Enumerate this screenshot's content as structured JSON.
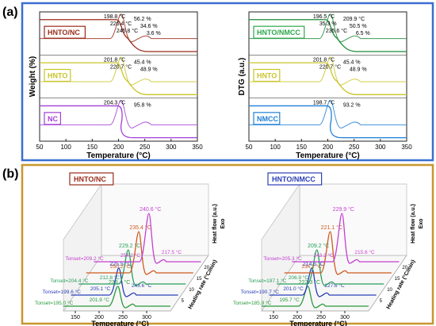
{
  "panel_a": {
    "label": "(a)",
    "frame_color": "#3a6fd0",
    "charts": [
      {
        "id": "a_left",
        "ylabel": "Weight (%)",
        "xlabel": "Temperature (°C)",
        "x_ticks": [
          "50",
          "100",
          "150",
          "200",
          "250",
          "300",
          "350"
        ],
        "xlim": [
          50,
          350
        ],
        "rows": [
          {
            "name": "HNTO/NC",
            "color": "#9a2b1a",
            "box_color": "#9a2b1a",
            "labels": [
              "198.8 °C",
              "56.2 %",
              "226.4 °C",
              "34.6 %",
              "245.8 °C",
              "3.6 %"
            ]
          },
          {
            "name": "HNTO",
            "color": "#c9c42a",
            "box_color": "#c9c42a",
            "labels": [
              "201.8 °C",
              "45.4 %",
              "220.7 °C",
              "48.9 %"
            ]
          },
          {
            "name": "NC",
            "color": "#a33fd6",
            "box_color": "#a33fd6",
            "labels": [
              "204.3 °C",
              "95.8 %"
            ]
          }
        ]
      },
      {
        "id": "a_right",
        "ylabel": "DTG (a.u.)",
        "xlabel": "Temperature (°C)",
        "x_ticks": [
          "50",
          "100",
          "150",
          "200",
          "250",
          "300",
          "350"
        ],
        "xlim": [
          50,
          350
        ],
        "rows": [
          {
            "name": "HNTO/NMCC",
            "color": "#1e8a3a",
            "box_color": "#2aa84a",
            "labels": [
              "196.5 °C",
              "209.9 °C",
              "35.3 %",
              "50.5 %",
              "235.6 °C",
              "6.5 %"
            ]
          },
          {
            "name": "HNTO",
            "color": "#c9c42a",
            "box_color": "#c9c42a",
            "labels": [
              "201.8 °C",
              "45.4 %",
              "220.7 °C",
              "48.9 %"
            ]
          },
          {
            "name": "NMCC",
            "color": "#1f7fd6",
            "box_color": "#1f7fd6",
            "labels": [
              "198.7 °C",
              "93.2 %"
            ]
          }
        ]
      }
    ]
  },
  "panel_b": {
    "label": "(b)",
    "frame_color": "#c8962c",
    "charts": [
      {
        "id": "b_left",
        "title": "HNTO/NC",
        "title_color": "#9a2b1a",
        "zlabel": "Heat flow (a.u.)",
        "exo": "Exo",
        "depth_label": "Heating rate (°C/min)",
        "xlabel": "Temperature (°C)",
        "x_ticks": [
          "150",
          "200",
          "250",
          "300"
        ],
        "depth_ticks": [
          "5",
          "10",
          "15",
          "20"
        ],
        "series": [
          {
            "rate": "5",
            "color": "#2a9a3a",
            "peak": "239.4 °C",
            "onset_label": "Tonset=195.0 °C",
            "extra": [
              "201.9 °C"
            ]
          },
          {
            "rate": "10",
            "color": "#2b3fb8",
            "peak": "225.5 °C",
            "onset_label": "Tonset=199.6 °C",
            "extra": [
              "205.1 °C",
              "243.6 °C"
            ]
          },
          {
            "rate": "15",
            "color": "#27a05a",
            "peak": "229.2 °C",
            "onset_label": "Tonset=204.4 °C",
            "extra": [
              "212.8 °C"
            ]
          },
          {
            "rate": "20",
            "color": "#d05a1e",
            "peak": "235.4 °C",
            "onset_label": "",
            "extra": [
              "250.2 °C"
            ]
          },
          {
            "rate": "25",
            "color": "#c43fd0",
            "peak": "240.6 °C",
            "onset_label": "Tonset=209.2 °C",
            "extra": [
              "254.2 °C",
              "217.5 °C"
            ]
          }
        ]
      },
      {
        "id": "b_right",
        "title": "HNTO/NMCC",
        "title_color": "#2b3fb8",
        "zlabel": "Heat flow (a.u.)",
        "exo": "Exo",
        "depth_label": "Heating rate (°C/min)",
        "xlabel": "Temperature (°C)",
        "x_ticks": [
          "150",
          "200",
          "250",
          "300"
        ],
        "depth_ticks": [
          "5",
          "10",
          "15",
          "20"
        ],
        "series": [
          {
            "rate": "5",
            "color": "#2a9a3a",
            "peak": "222.3 °C",
            "onset_label": "Tonset=185.9 °C",
            "extra": [
              "195.7 °C"
            ]
          },
          {
            "rate": "10",
            "color": "#2b3fb8",
            "peak": "214.6 °C",
            "onset_label": "Tonset=190.7 °C",
            "extra": [
              "201.0 °C",
              "227.6 °C"
            ]
          },
          {
            "rate": "15",
            "color": "#27a05a",
            "peak": "209.2 °C",
            "onset_label": "Tonset=197.1 °C",
            "extra": [
              "206.9 °C"
            ]
          },
          {
            "rate": "20",
            "color": "#d05a1e",
            "peak": "221.1 °C",
            "onset_label": "",
            "extra": [
              "234.2 °C"
            ]
          },
          {
            "rate": "25",
            "color": "#c43fd0",
            "peak": "229.9 °C",
            "onset_label": "Tonset=205.3 °C",
            "extra": [
              "243.2 °C",
              "215.6 °C"
            ]
          }
        ]
      }
    ]
  }
}
